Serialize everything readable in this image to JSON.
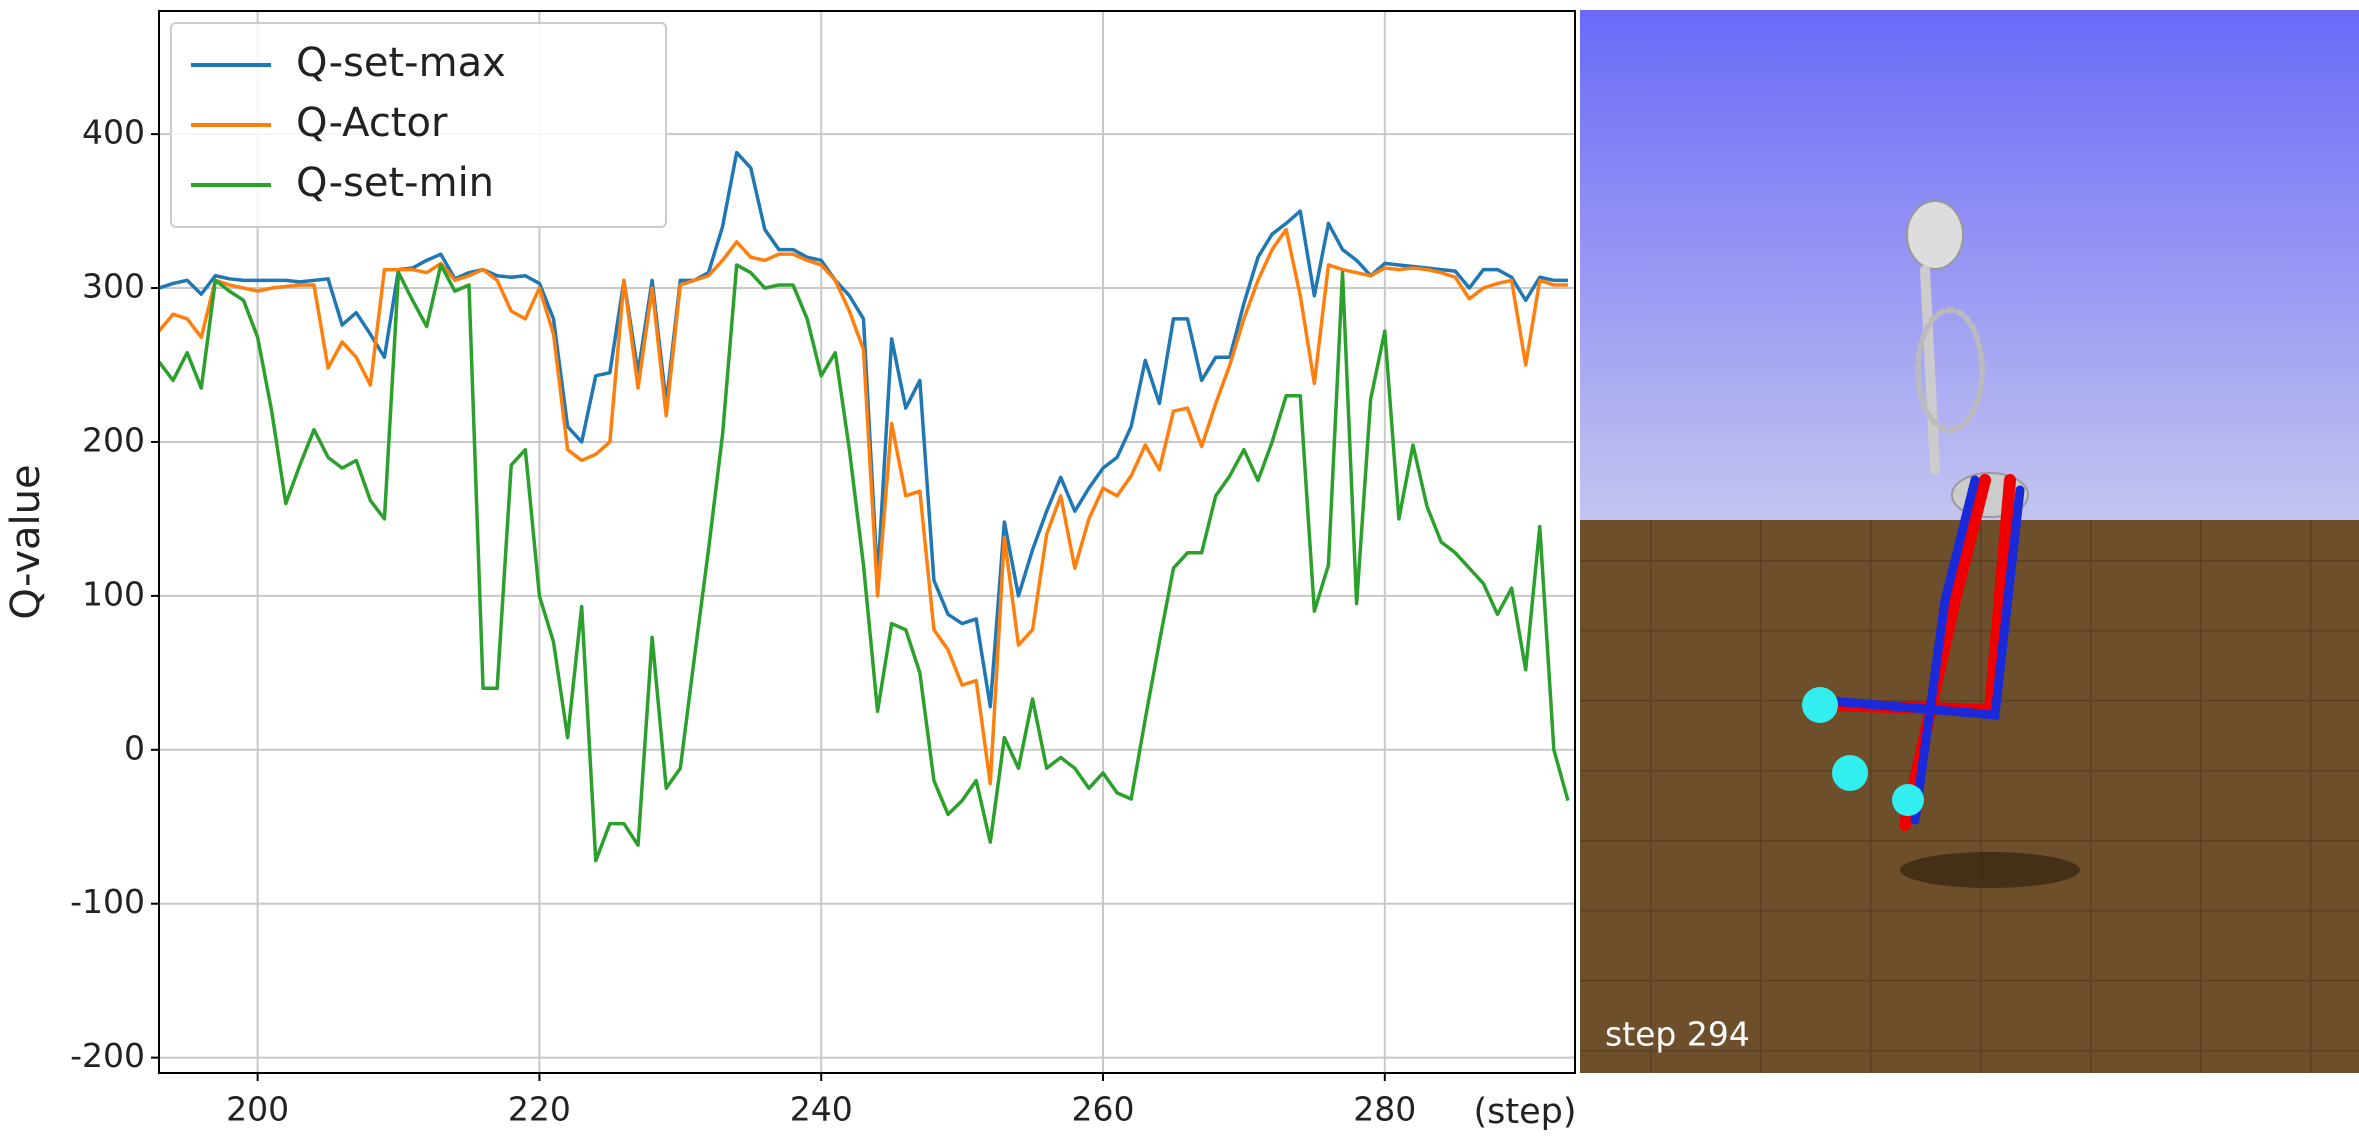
{
  "chart_data": {
    "type": "line",
    "xlabel": "(step)",
    "ylabel": "Q-value",
    "x": [
      193,
      194,
      195,
      196,
      197,
      198,
      199,
      200,
      201,
      202,
      203,
      204,
      205,
      206,
      207,
      208,
      209,
      210,
      211,
      212,
      213,
      214,
      215,
      216,
      217,
      218,
      219,
      220,
      221,
      222,
      223,
      224,
      225,
      226,
      227,
      228,
      229,
      230,
      231,
      232,
      233,
      234,
      235,
      236,
      237,
      238,
      239,
      240,
      241,
      242,
      243,
      244,
      245,
      246,
      247,
      248,
      249,
      250,
      251,
      252,
      253,
      254,
      255,
      256,
      257,
      258,
      259,
      260,
      261,
      262,
      263,
      264,
      265,
      266,
      267,
      268,
      269,
      270,
      271,
      272,
      273,
      274,
      275,
      276,
      277,
      278,
      279,
      280,
      281,
      282,
      283,
      284,
      285,
      286,
      287,
      288,
      289,
      290,
      291,
      292,
      293
    ],
    "series": [
      {
        "name": "Q-set-max",
        "color": "#1f77b4",
        "values": [
          300,
          303,
          305,
          296,
          308,
          306,
          305,
          305,
          305,
          305,
          304,
          305,
          306,
          276,
          284,
          270,
          255,
          312,
          313,
          318,
          322,
          306,
          310,
          312,
          308,
          307,
          308,
          303,
          280,
          210,
          200,
          243,
          245,
          305,
          245,
          305,
          225,
          305,
          305,
          310,
          340,
          388,
          378,
          338,
          325,
          325,
          320,
          318,
          305,
          295,
          280,
          110,
          267,
          222,
          240,
          110,
          88,
          82,
          85,
          28,
          148,
          100,
          130,
          155,
          177,
          155,
          170,
          183,
          190,
          210,
          253,
          225,
          280,
          280,
          240,
          255,
          255,
          290,
          320,
          335,
          342,
          350,
          295,
          342,
          325,
          318,
          308,
          316,
          315,
          314,
          313,
          312,
          311,
          300,
          312,
          312,
          307,
          292,
          307,
          305,
          305
        ]
      },
      {
        "name": "Q-Actor",
        "color": "#ff7f0e",
        "values": [
          272,
          283,
          280,
          268,
          305,
          302,
          300,
          298,
          300,
          301,
          302,
          302,
          248,
          265,
          255,
          237,
          312,
          312,
          312,
          310,
          316,
          305,
          308,
          312,
          305,
          285,
          280,
          300,
          270,
          195,
          188,
          192,
          200,
          305,
          235,
          300,
          217,
          302,
          305,
          308,
          318,
          330,
          320,
          318,
          322,
          322,
          318,
          315,
          305,
          285,
          260,
          100,
          212,
          165,
          168,
          78,
          65,
          42,
          45,
          -22,
          138,
          68,
          78,
          140,
          165,
          118,
          150,
          170,
          165,
          178,
          198,
          182,
          220,
          222,
          197,
          225,
          250,
          280,
          305,
          325,
          338,
          295,
          238,
          315,
          312,
          310,
          308,
          313,
          312,
          313,
          312,
          310,
          307,
          293,
          300,
          303,
          305,
          250,
          305,
          302,
          302
        ]
      },
      {
        "name": "Q-set-min",
        "color": "#2ca02c",
        "values": [
          252,
          240,
          258,
          235,
          305,
          298,
          292,
          268,
          220,
          160,
          185,
          208,
          190,
          183,
          188,
          162,
          150,
          310,
          292,
          275,
          315,
          298,
          302,
          40,
          40,
          185,
          195,
          100,
          70,
          8,
          93,
          -72,
          -48,
          -48,
          -62,
          73,
          -25,
          -12,
          60,
          130,
          205,
          315,
          310,
          300,
          302,
          302,
          280,
          243,
          258,
          195,
          120,
          25,
          82,
          78,
          50,
          -20,
          -42,
          -33,
          -20,
          -60,
          8,
          -12,
          33,
          -12,
          -5,
          -12,
          -25,
          -15,
          -28,
          -32,
          20,
          70,
          118,
          128,
          128,
          165,
          178,
          195,
          175,
          200,
          230,
          230,
          90,
          120,
          310,
          95,
          228,
          272,
          150,
          198,
          158,
          135,
          128,
          118,
          108,
          88,
          105,
          52,
          145,
          0,
          -33
        ]
      }
    ],
    "xlim": [
      193,
      293.5
    ],
    "ylim": [
      -210,
      480
    ],
    "xticks": [
      200,
      220,
      240,
      260,
      280
    ],
    "yticks": [
      -200,
      -100,
      0,
      100,
      200,
      300,
      400
    ],
    "grid": true,
    "legend": "upper-left"
  },
  "simulation": {
    "caption": "step 294"
  }
}
